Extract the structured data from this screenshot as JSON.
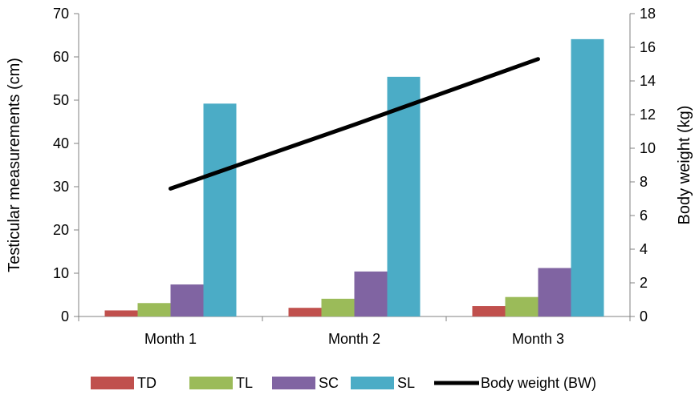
{
  "chart_data": {
    "type": "bar",
    "categories": [
      "Month 1",
      "Month 2",
      "Month 3"
    ],
    "series": [
      {
        "name": "TD",
        "values": [
          1.4,
          2.0,
          2.4
        ],
        "color": "#C0504D",
        "axis": "left"
      },
      {
        "name": "TL",
        "values": [
          3.1,
          4.1,
          4.5
        ],
        "color": "#9BBB59",
        "axis": "left"
      },
      {
        "name": "SC",
        "values": [
          7.4,
          10.4,
          11.2
        ],
        "color": "#8064A2",
        "axis": "left"
      },
      {
        "name": "SL",
        "values": [
          49.2,
          55.4,
          64.1
        ],
        "color": "#4BACC6",
        "axis": "left"
      }
    ],
    "line_series": [
      {
        "name": "Body weight (BW)",
        "type": "line",
        "values": [
          7.6,
          11.4,
          15.3
        ],
        "color": "#000000",
        "axis": "right"
      }
    ],
    "xlabel": "",
    "ylabel": "Testicular measurements (cm)",
    "ylim": [
      0,
      70
    ],
    "yticks": [
      0,
      10,
      20,
      30,
      40,
      50,
      60,
      70
    ],
    "y2label": "Body weight (kg)",
    "y2lim": [
      0,
      18
    ],
    "y2ticks": [
      0,
      2,
      4,
      6,
      8,
      10,
      12,
      14,
      16,
      18
    ],
    "grid": false,
    "legend_position": "bottom"
  }
}
